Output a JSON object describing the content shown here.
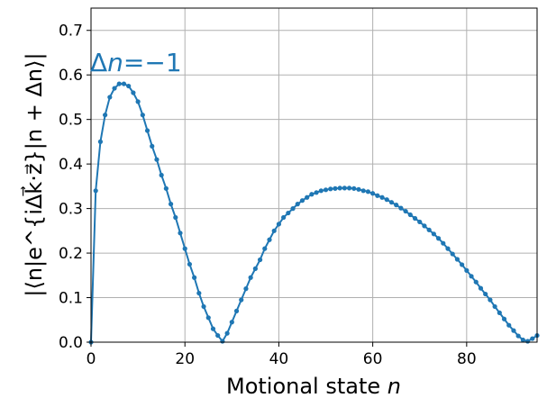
{
  "chart_data": {
    "type": "line",
    "xlabel_text": "Motional state ",
    "xlabel_var": "n",
    "ylabel": "|⟨n|e^{iΔk⃗·z⃗}|n + Δn⟩|",
    "annotation_prefix": "Δ",
    "annotation_var": "n",
    "annotation_value": "=−1",
    "xlim": [
      0,
      95
    ],
    "ylim": [
      0,
      0.75
    ],
    "x_ticks": [
      0,
      20,
      40,
      60,
      80
    ],
    "y_ticks": [
      0.0,
      0.1,
      0.2,
      0.3,
      0.4,
      0.5,
      0.6,
      0.7
    ],
    "x_tick_labels": [
      "0",
      "20",
      "40",
      "60",
      "80"
    ],
    "y_tick_labels": [
      "0.0",
      "0.1",
      "0.2",
      "0.3",
      "0.4",
      "0.5",
      "0.6",
      "0.7"
    ],
    "grid": true,
    "color": "#1f77b4",
    "series": [
      {
        "x": [
          0,
          1,
          2,
          3,
          4,
          5,
          6,
          7,
          8,
          9,
          10,
          11,
          12,
          13,
          14,
          15,
          16,
          17,
          18,
          19,
          20,
          21,
          22,
          23,
          24,
          25,
          26,
          27,
          28,
          29,
          30,
          31,
          32,
          33,
          34,
          35,
          36,
          37,
          38,
          39,
          40,
          41,
          42,
          43,
          44,
          45,
          46,
          47,
          48,
          49,
          50,
          51,
          52,
          53,
          54,
          55,
          56,
          57,
          58,
          59,
          60,
          61,
          62,
          63,
          64,
          65,
          66,
          67,
          68,
          69,
          70,
          71,
          72,
          73,
          74,
          75,
          76,
          77,
          78,
          79,
          80,
          81,
          82,
          83,
          84,
          85,
          86,
          87,
          88,
          89,
          90,
          91,
          92,
          93,
          94,
          95
        ],
        "y": [
          0.0,
          0.34,
          0.45,
          0.51,
          0.55,
          0.57,
          0.58,
          0.58,
          0.575,
          0.56,
          0.54,
          0.51,
          0.475,
          0.44,
          0.41,
          0.375,
          0.345,
          0.31,
          0.28,
          0.245,
          0.21,
          0.175,
          0.145,
          0.11,
          0.08,
          0.055,
          0.03,
          0.015,
          0.002,
          0.02,
          0.045,
          0.07,
          0.095,
          0.12,
          0.145,
          0.165,
          0.185,
          0.21,
          0.23,
          0.25,
          0.265,
          0.28,
          0.29,
          0.3,
          0.31,
          0.318,
          0.325,
          0.332,
          0.336,
          0.34,
          0.342,
          0.344,
          0.345,
          0.346,
          0.346,
          0.346,
          0.345,
          0.343,
          0.34,
          0.338,
          0.334,
          0.329,
          0.325,
          0.32,
          0.314,
          0.308,
          0.301,
          0.294,
          0.286,
          0.278,
          0.27,
          0.261,
          0.252,
          0.243,
          0.233,
          0.222,
          0.21,
          0.198,
          0.186,
          0.174,
          0.161,
          0.148,
          0.135,
          0.121,
          0.108,
          0.095,
          0.08,
          0.066,
          0.052,
          0.038,
          0.026,
          0.014,
          0.005,
          0.002,
          0.008,
          0.015
        ]
      }
    ]
  }
}
